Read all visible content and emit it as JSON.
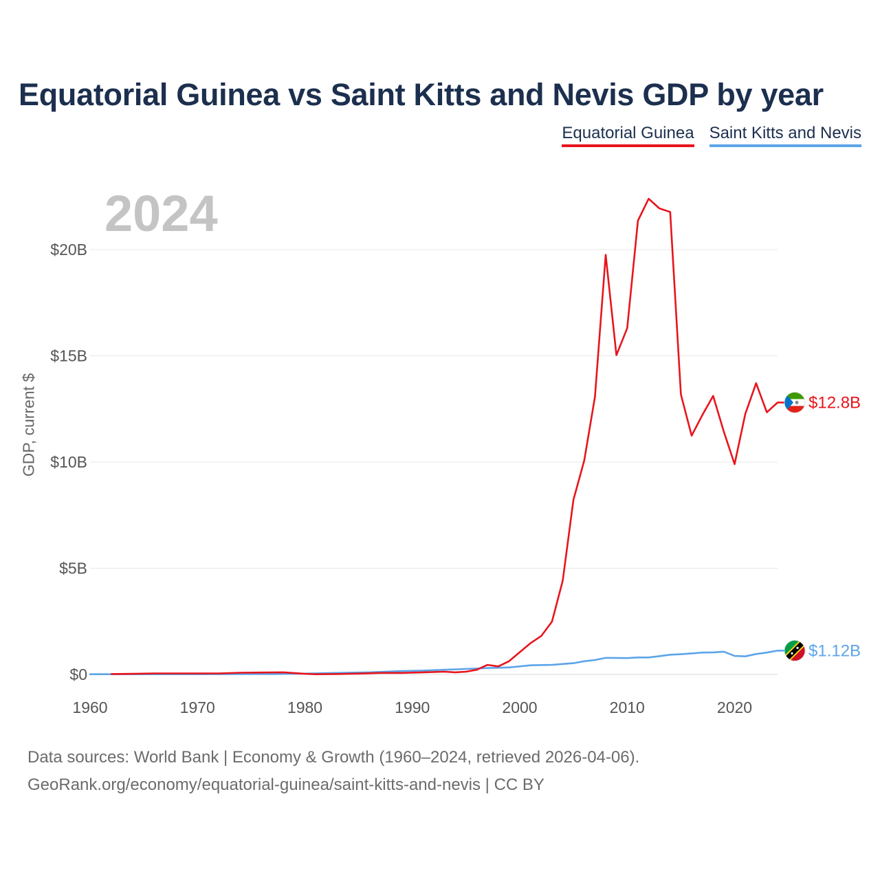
{
  "colors": {
    "equatorial_guinea": "#e8141c",
    "saint_kitts_and_nevis": "#5ca4e8",
    "title": "#1c2f4e"
  },
  "footer": {
    "line1": "Data sources: World Bank | Economy & Growth (1960–2024, retrieved 2026-04-06).",
    "line2": "GeoRank.org/economy/equatorial-guinea/saint-kitts-and-nevis | CC BY"
  },
  "chart_data": {
    "type": "line",
    "title": "Equatorial Guinea vs Saint Kitts and Nevis GDP by year",
    "current_year": "2024",
    "xlabel": "",
    "ylabel": "GDP, current $",
    "xlim": [
      1960,
      2024
    ],
    "ylim": [
      0,
      22
    ],
    "x_ticks": [
      1960,
      1970,
      1980,
      1990,
      2000,
      2010,
      2020
    ],
    "x_tick_labels": [
      "1960",
      "1970",
      "1980",
      "1990",
      "2000",
      "2010",
      "2020"
    ],
    "y_ticks": [
      0,
      5,
      10,
      15,
      20
    ],
    "y_tick_labels": [
      "$0",
      "$5B",
      "$10B",
      "$15B",
      "$20B"
    ],
    "legend": [
      "Equatorial Guinea",
      "Saint Kitts and Nevis"
    ],
    "series": [
      {
        "name": "Equatorial Guinea",
        "end_label": "$12.8B",
        "x": [
          1962,
          1964,
          1966,
          1968,
          1970,
          1972,
          1974,
          1976,
          1978,
          1980,
          1981,
          1983,
          1985,
          1987,
          1989,
          1991,
          1993,
          1994,
          1995,
          1996,
          1997,
          1998,
          1999,
          2000,
          2001,
          2002,
          2003,
          2004,
          2005,
          2006,
          2007,
          2008,
          2009,
          2010,
          2011,
          2012,
          2013,
          2014,
          2015,
          2016,
          2017,
          2018,
          2019,
          2020,
          2021,
          2022,
          2023,
          2024
        ],
        "values": [
          0.02,
          0.03,
          0.05,
          0.05,
          0.05,
          0.05,
          0.08,
          0.09,
          0.1,
          0.03,
          0.01,
          0.02,
          0.04,
          0.07,
          0.07,
          0.1,
          0.13,
          0.1,
          0.13,
          0.22,
          0.45,
          0.38,
          0.62,
          1.05,
          1.47,
          1.81,
          2.49,
          4.41,
          8.22,
          10.07,
          13.07,
          19.75,
          15.03,
          16.3,
          21.36,
          22.39,
          21.94,
          21.77,
          13.18,
          11.24,
          12.21,
          13.11,
          11.42,
          9.9,
          12.27,
          13.71,
          12.34,
          12.8
        ]
      },
      {
        "name": "Saint Kitts and Nevis",
        "end_label": "$1.12B",
        "x": [
          1960,
          1965,
          1970,
          1975,
          1977,
          1980,
          1983,
          1986,
          1989,
          1991,
          1993,
          1995,
          1997,
          1999,
          2001,
          2003,
          2005,
          2006,
          2007,
          2008,
          2010,
          2011,
          2012,
          2013,
          2014,
          2015,
          2016,
          2017,
          2018,
          2019,
          2020,
          2021,
          2022,
          2023,
          2024
        ],
        "values": [
          0.01,
          0.01,
          0.01,
          0.02,
          0.02,
          0.04,
          0.07,
          0.1,
          0.16,
          0.18,
          0.22,
          0.26,
          0.3,
          0.33,
          0.43,
          0.45,
          0.53,
          0.62,
          0.68,
          0.78,
          0.77,
          0.8,
          0.8,
          0.86,
          0.93,
          0.95,
          0.99,
          1.03,
          1.04,
          1.07,
          0.87,
          0.85,
          0.96,
          1.03,
          1.12
        ]
      }
    ]
  }
}
